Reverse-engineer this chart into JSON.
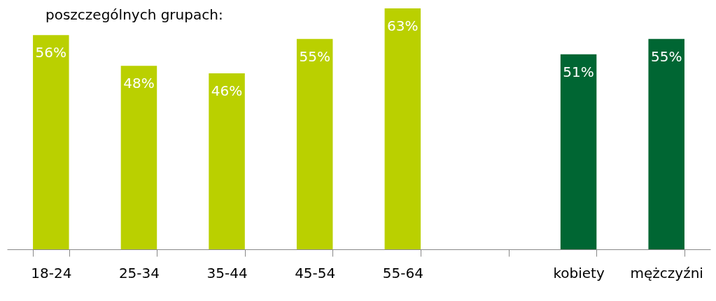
{
  "chart_data": {
    "type": "bar",
    "title": "poszczególnych grupach:",
    "categories": [
      "18-24",
      "25-34",
      "35-44",
      "45-54",
      "55-64",
      null,
      "kobiety",
      "mężczyźni"
    ],
    "values": [
      56,
      48,
      46,
      55,
      63,
      null,
      51,
      55
    ],
    "colors": [
      "#bad000",
      "#bad000",
      "#bad000",
      "#bad000",
      "#bad000",
      null,
      "#006633",
      "#006633"
    ],
    "value_labels": [
      "56%",
      "48%",
      "46%",
      "55%",
      "63%",
      null,
      "51%",
      "55%"
    ],
    "grid": false,
    "tick_labels": "x"
  }
}
